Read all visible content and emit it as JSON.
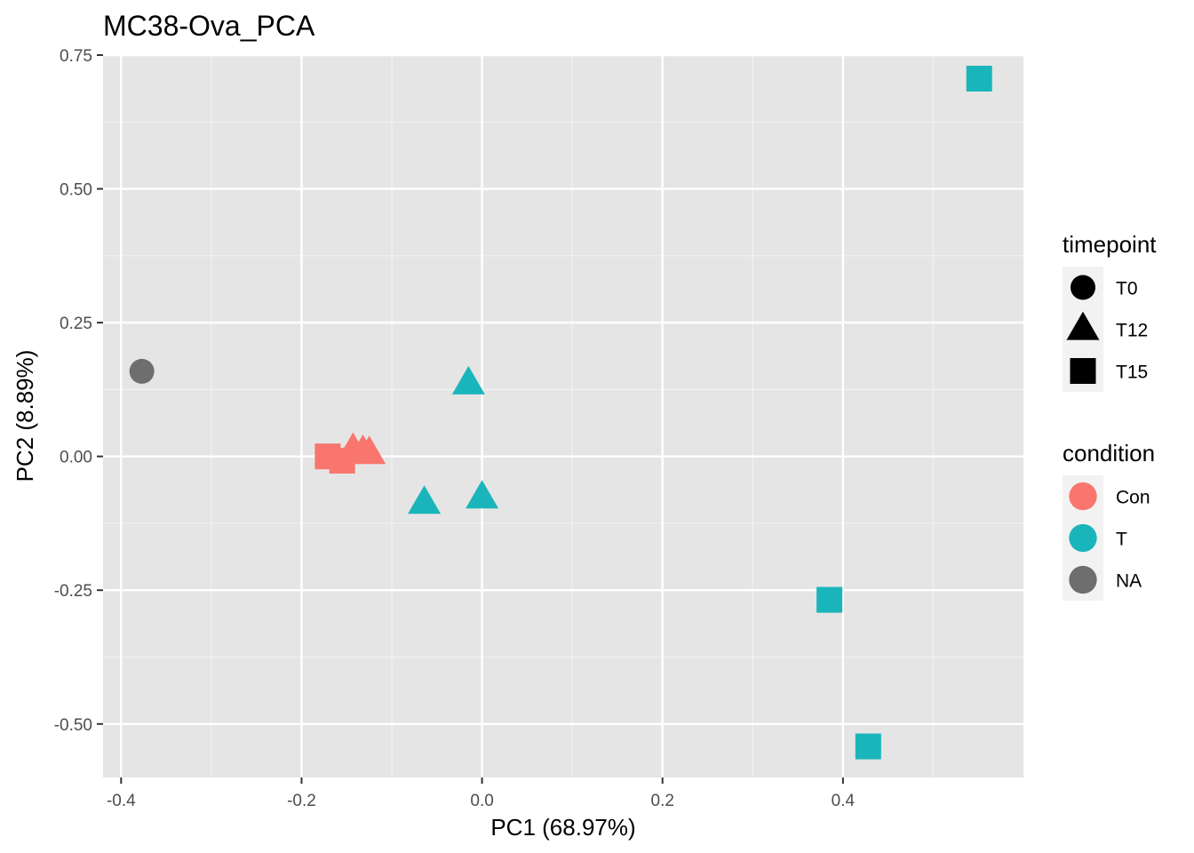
{
  "chart_data": {
    "type": "scatter",
    "title": "MC38-Ova_PCA",
    "xlabel": "PC1 (68.97%)",
    "ylabel": "PC2 (8.89%)",
    "xlim": [
      -0.42,
      0.6
    ],
    "ylim": [
      -0.6,
      0.75
    ],
    "x_ticks": [
      -0.4,
      -0.2,
      0.0,
      0.2,
      0.4
    ],
    "x_tick_labels": [
      "-0.4",
      "-0.2",
      "0.0",
      "0.2",
      "0.4"
    ],
    "y_ticks": [
      0.75,
      0.5,
      0.25,
      0.0,
      -0.25,
      -0.5
    ],
    "y_tick_labels": [
      "0.75",
      "0.50",
      "0.25",
      "0.00",
      "-0.25",
      "-0.50"
    ],
    "grid": true,
    "background_color": "#E5E5E5",
    "points": [
      {
        "x": -0.377,
        "y": 0.159,
        "condition": "NA",
        "timepoint": "T0"
      },
      {
        "x": -0.171,
        "y": 0.0,
        "condition": "Con",
        "timepoint": "T15"
      },
      {
        "x": -0.155,
        "y": -0.008,
        "condition": "Con",
        "timepoint": "T15"
      },
      {
        "x": -0.143,
        "y": 0.012,
        "condition": "Con",
        "timepoint": "T12"
      },
      {
        "x": -0.132,
        "y": 0.008,
        "condition": "Con",
        "timepoint": "T12"
      },
      {
        "x": -0.125,
        "y": 0.006,
        "condition": "Con",
        "timepoint": "T12"
      },
      {
        "x": -0.015,
        "y": 0.136,
        "condition": "T",
        "timepoint": "T12"
      },
      {
        "x": -0.064,
        "y": -0.087,
        "condition": "T",
        "timepoint": "T12"
      },
      {
        "x": 0.0,
        "y": -0.077,
        "condition": "T",
        "timepoint": "T12"
      },
      {
        "x": 0.385,
        "y": -0.268,
        "condition": "T",
        "timepoint": "T15"
      },
      {
        "x": 0.428,
        "y": -0.542,
        "condition": "T",
        "timepoint": "T15"
      },
      {
        "x": 0.551,
        "y": 0.706,
        "condition": "T",
        "timepoint": "T15"
      }
    ],
    "legends": [
      {
        "title": "timepoint",
        "kind": "shape",
        "entries": [
          {
            "label": "T0",
            "shape": "circle"
          },
          {
            "label": "T12",
            "shape": "triangle"
          },
          {
            "label": "T15",
            "shape": "square"
          }
        ]
      },
      {
        "title": "condition",
        "kind": "color",
        "entries": [
          {
            "label": "Con",
            "color": "#F8766D"
          },
          {
            "label": "T",
            "color": "#00BFC4"
          },
          {
            "label": "NA",
            "color": "#737373"
          }
        ]
      }
    ],
    "legend_position": "right",
    "colors": {
      "Con": "#F8766D",
      "T": "#1AB5BA",
      "NA": "#6E6E6E"
    }
  }
}
